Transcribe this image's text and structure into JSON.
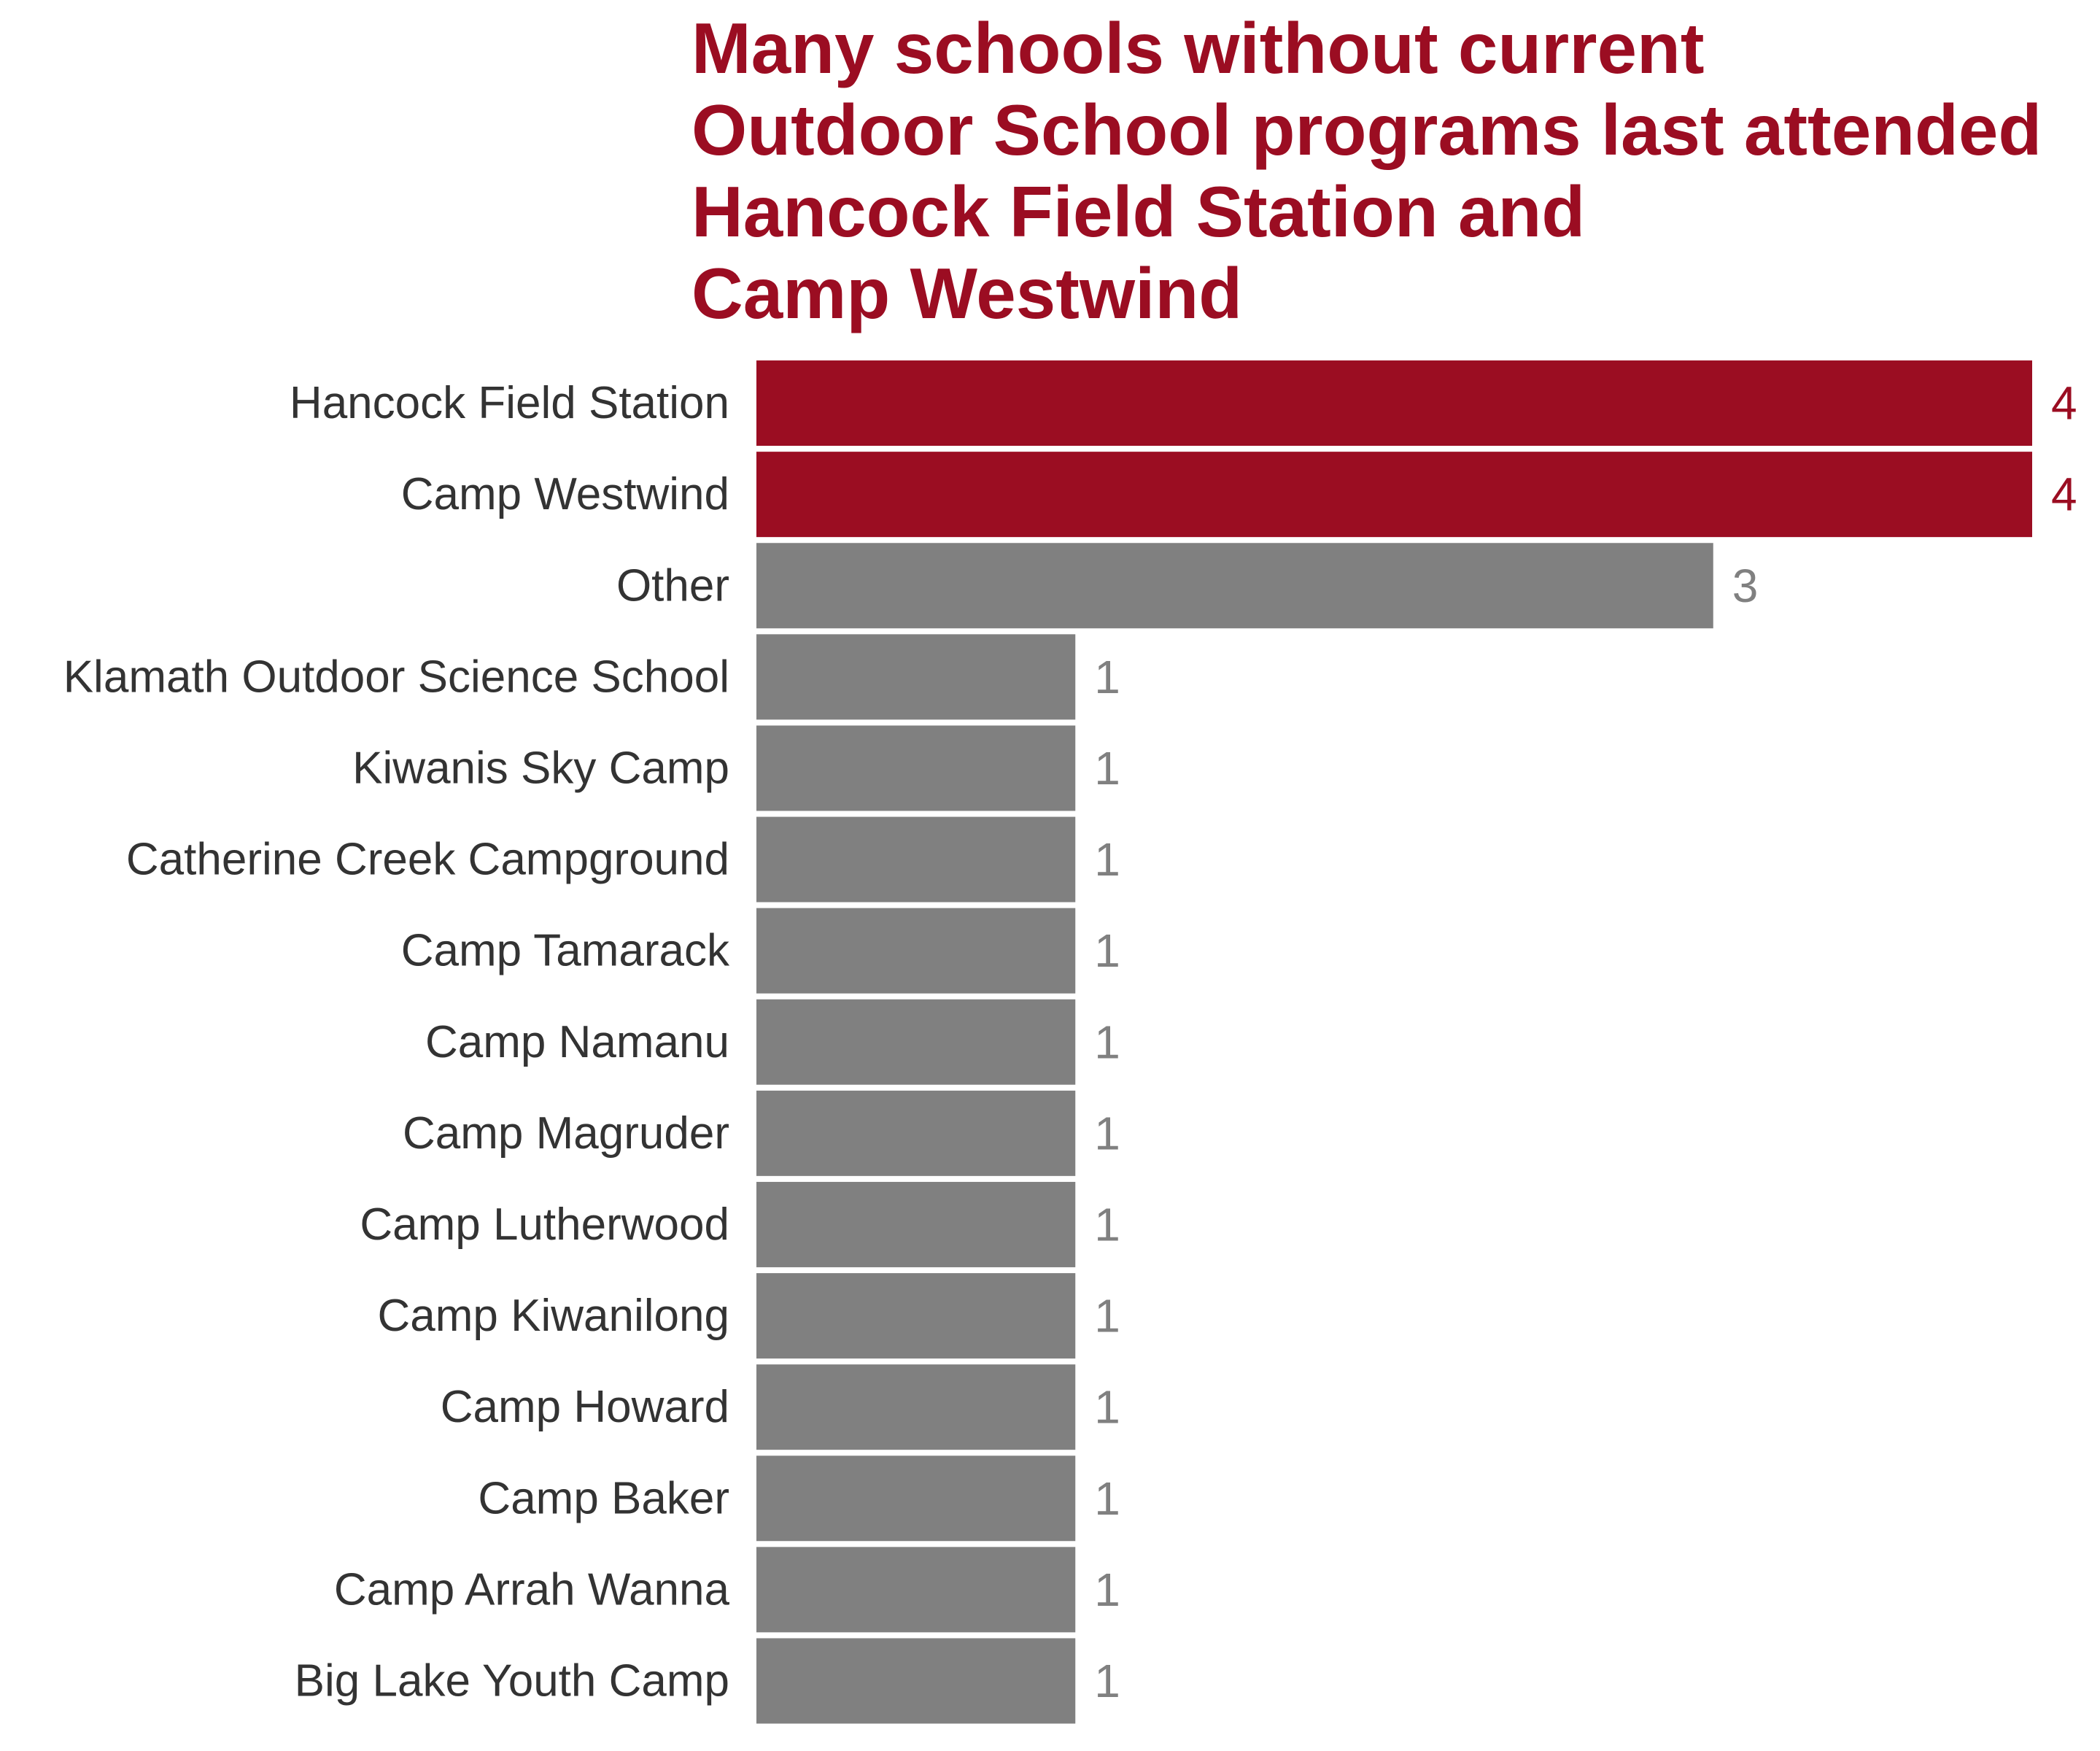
{
  "chart_data": {
    "type": "bar",
    "orientation": "horizontal",
    "title_lines": [
      "Many schools without current",
      "Outdoor School programs last attended",
      "Hancock Field Station and",
      "Camp Westwind"
    ],
    "xlabel": "",
    "ylabel": "",
    "xlim": [
      0,
      4
    ],
    "grid": false,
    "legend": "none",
    "categories": [
      "Hancock Field Station",
      "Camp Westwind",
      "Other",
      "Klamath Outdoor Science School",
      "Kiwanis Sky Camp",
      "Catherine Creek Campground",
      "Camp Tamarack",
      "Camp Namanu",
      "Camp Magruder",
      "Camp Lutherwood",
      "Camp Kiwanilong",
      "Camp Howard",
      "Camp Baker",
      "Camp Arrah Wanna",
      "Big Lake Youth Camp"
    ],
    "values": [
      4,
      4,
      3,
      1,
      1,
      1,
      1,
      1,
      1,
      1,
      1,
      1,
      1,
      1,
      1
    ],
    "highlighted": [
      true,
      true,
      false,
      false,
      false,
      false,
      false,
      false,
      false,
      false,
      false,
      false,
      false,
      false,
      false
    ],
    "colors": {
      "highlight": "#9b0d22",
      "default": "#808080",
      "category_label": "#333333",
      "title": "#9b0d22"
    }
  }
}
